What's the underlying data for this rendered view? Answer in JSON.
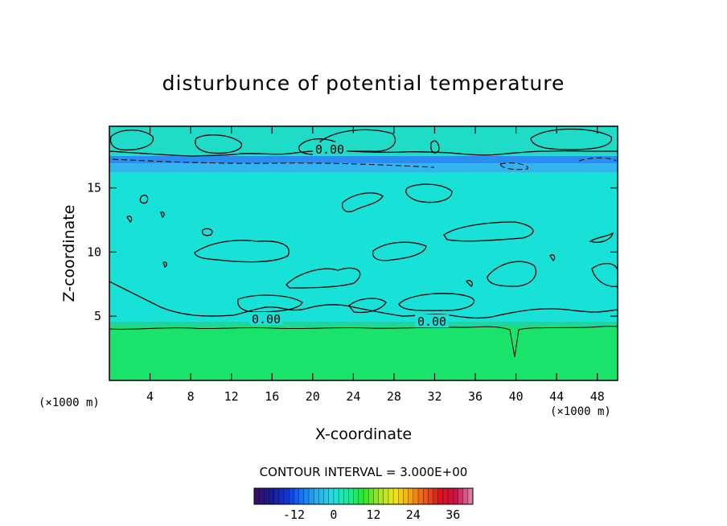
{
  "chart_data": {
    "type": "heatmap",
    "title": "disturbunce of potential temperature",
    "xlabel": "X-coordinate",
    "ylabel": "Z-coordinate",
    "x_unit": "(×1000 m)",
    "y_unit": "(×1000 m)",
    "xlim": [
      0,
      50
    ],
    "ylim": [
      0,
      19.8
    ],
    "x_ticks": [
      4,
      8,
      12,
      16,
      20,
      24,
      28,
      32,
      36,
      40,
      44,
      48
    ],
    "y_ticks": [
      5,
      10,
      15
    ],
    "contour_interval_label": "CONTOUR INTERVAL = 3.000E+00",
    "contour_labels": [
      {
        "text": "0.00",
        "x": 21.5,
        "y": 18.0
      },
      {
        "text": "0.00",
        "x": 15.5,
        "y": 4.8
      },
      {
        "text": "0.00",
        "x": 31.8,
        "y": 4.6
      }
    ],
    "field_bands": [
      {
        "z_from": 0.0,
        "z_to": 4.2,
        "color": "#19e36a"
      },
      {
        "z_from": 4.2,
        "z_to": 4.6,
        "color": "#1ed3a4"
      },
      {
        "z_from": 4.6,
        "z_to": 16.2,
        "color": "#18e2d8"
      },
      {
        "z_from": 16.2,
        "z_to": 16.9,
        "color": "#32b4ec"
      },
      {
        "z_from": 16.9,
        "z_to": 17.5,
        "color": "#2a8df0"
      },
      {
        "z_from": 17.5,
        "z_to": 19.8,
        "color": "#1fdcc8"
      }
    ],
    "colorbar": {
      "ticks": [
        "-12",
        "0",
        "12",
        "24",
        "36"
      ],
      "tick_values": [
        -12,
        0,
        12,
        24,
        36
      ],
      "range": [
        -24,
        42
      ],
      "colors": [
        "#3b0d6e",
        "#151b9c",
        "#1536d6",
        "#1a78ee",
        "#22b3f2",
        "#1fe0e0",
        "#1ee89a",
        "#29e82e",
        "#9ee81c",
        "#f0e61a",
        "#f0a81a",
        "#f05a14",
        "#e0121a",
        "#c2124a",
        "#d87aa0"
      ]
    }
  }
}
